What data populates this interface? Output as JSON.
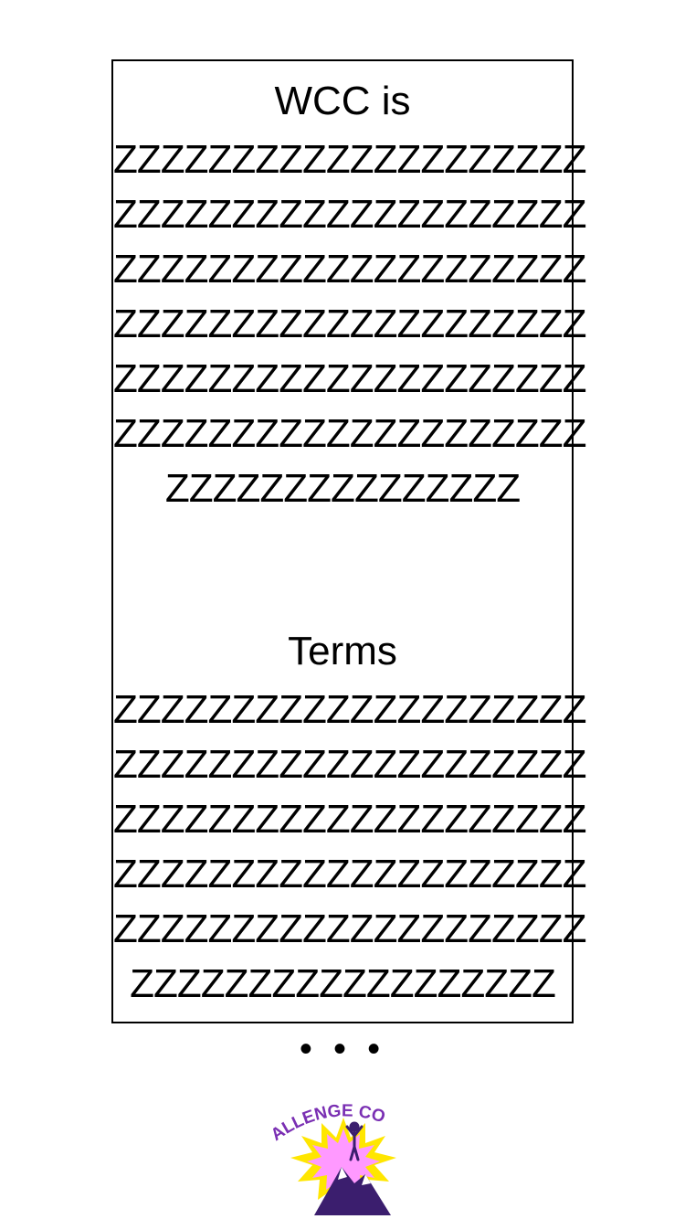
{
  "sections": [
    {
      "heading": "WCC is",
      "lines": [
        "ZZZZZZZZZZZZZZZZZZZZ",
        "ZZZZZZZZZZZZZZZZZZZZ",
        "ZZZZZZZZZZZZZZZZZZZZ",
        "ZZZZZZZZZZZZZZZZZZZZ",
        "ZZZZZZZZZZZZZZZZZZZZ",
        "ZZZZZZZZZZZZZZZZZZZZ",
        "ZZZZZZZZZZZZZZZ"
      ]
    },
    {
      "heading": "Terms",
      "lines": [
        "ZZZZZZZZZZZZZZZZZZZZ",
        "ZZZZZZZZZZZZZZZZZZZZ",
        "ZZZZZZZZZZZZZZZZZZZZ",
        "ZZZZZZZZZZZZZZZZZZZZ",
        "ZZZZZZZZZZZZZZZZZZZZ",
        "ZZZZZZZZZZZZZZZZZZ"
      ]
    }
  ],
  "ellipsis": "• • •",
  "logo": {
    "text": "ALLENGE CO",
    "colors": {
      "burst": "#FFE600",
      "fill": "#FF99FF",
      "text": "#7A2FB3",
      "mountain": "#3B1E6E"
    }
  }
}
